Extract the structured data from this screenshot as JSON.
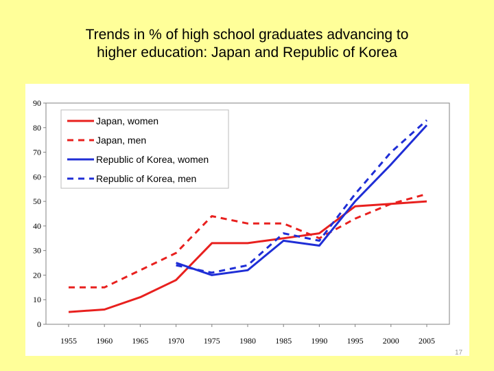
{
  "slide": {
    "title_line1": "Trends in % of high school graduates advancing to",
    "title_line2": "higher education: Japan and Republic of Korea",
    "page_number": "17"
  },
  "chart_data": {
    "type": "line",
    "title": "Trends in % of high school graduates advancing to higher education: Japan and Republic of Korea",
    "xlabel": "",
    "ylabel": "",
    "x": [
      1955,
      1960,
      1965,
      1970,
      1975,
      1980,
      1985,
      1990,
      1995,
      2000,
      2005
    ],
    "xlim": [
      1955,
      2005
    ],
    "ylim": [
      0,
      90
    ],
    "yticks": [
      0,
      10,
      20,
      30,
      40,
      50,
      60,
      70,
      80,
      90
    ],
    "grid": false,
    "legend_position": "top-left",
    "series": [
      {
        "name": "Japan, women",
        "color": "#E8201E",
        "style": "solid",
        "values": [
          5,
          6,
          11,
          18,
          33,
          33,
          35,
          37,
          48,
          49,
          50
        ]
      },
      {
        "name": "Japan, men",
        "color": "#E8201E",
        "style": "dashed",
        "values": [
          15,
          15,
          22,
          29,
          44,
          41,
          41,
          35,
          43,
          49,
          53
        ]
      },
      {
        "name": "Republic of Korea, women",
        "color": "#1F2ED6",
        "style": "solid",
        "values": [
          null,
          null,
          null,
          25,
          20,
          22,
          34,
          32,
          50,
          65,
          81
        ]
      },
      {
        "name": "Republic of Korea, men",
        "color": "#1F2ED6",
        "style": "dashed",
        "values": [
          null,
          null,
          null,
          24,
          21,
          24,
          37,
          34,
          53,
          70,
          83
        ]
      }
    ]
  }
}
